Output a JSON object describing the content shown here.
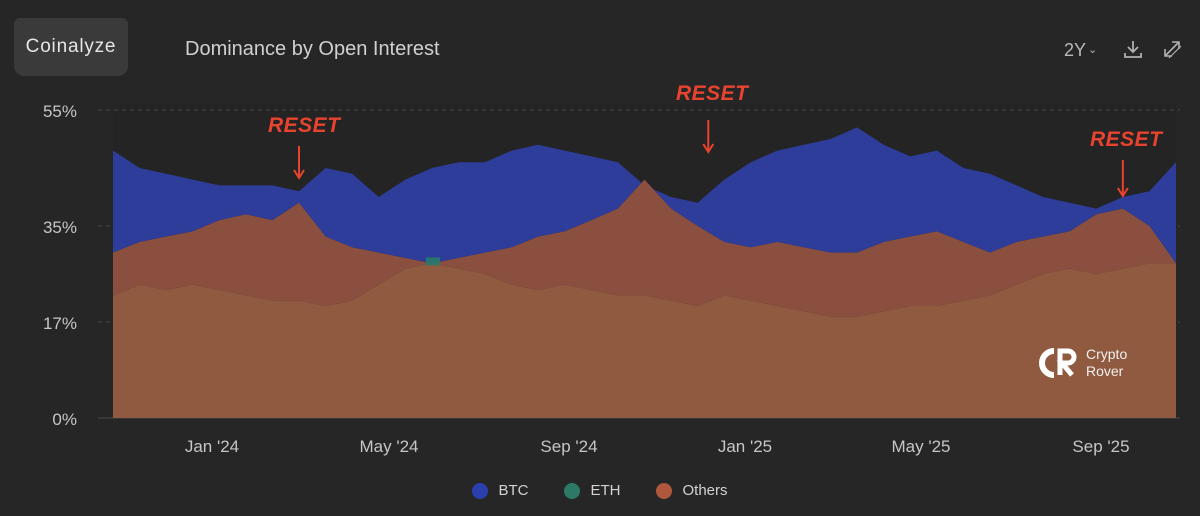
{
  "header": {
    "brand": "Coinalyze",
    "title": "Dominance by Open Interest",
    "range": "2Y",
    "range_chevron": "⌄"
  },
  "watermark": {
    "line1": "Crypto",
    "line2": "Rover"
  },
  "annotations": {
    "reset_1": "RESET",
    "reset_2": "RESET",
    "reset_3": "RESET"
  },
  "colors": {
    "btc": "#2e3d9a",
    "eth": "#2a7a6a",
    "others": "#8a4f3e",
    "others_base": "#8f5a40",
    "annotation": "#e8432f"
  },
  "chart_data": {
    "type": "area",
    "stacking": "stacked",
    "title": "Dominance by Open Interest",
    "y_ticks": [
      "55%",
      "35%",
      "17%",
      "0%"
    ],
    "x_ticks": [
      "Jan '24",
      "May '24",
      "Sep '24",
      "Jan '25",
      "May '25",
      "Sep '25"
    ],
    "legend": [
      "BTC",
      "ETH",
      "Others"
    ],
    "annotation_points": [
      {
        "label": "RESET",
        "t": 0.175
      },
      {
        "label": "RESET",
        "t": 0.56
      },
      {
        "label": "RESET",
        "t": 0.95
      }
    ],
    "series": [
      {
        "name": "Others",
        "values": [
          22,
          24,
          23,
          24,
          23,
          22,
          21,
          21,
          20,
          21,
          24,
          27,
          28,
          27,
          26,
          24,
          23,
          24,
          23,
          22,
          22,
          21,
          20,
          22,
          21,
          20,
          19,
          18,
          18,
          19,
          20,
          20,
          21,
          22,
          24,
          26,
          27,
          26,
          27,
          28,
          28
        ]
      },
      {
        "name": "ETH",
        "values": [
          30,
          32,
          33,
          34,
          36,
          37,
          36,
          39,
          33,
          31,
          30,
          29,
          28,
          29,
          30,
          31,
          33,
          34,
          36,
          38,
          43,
          38,
          35,
          32,
          31,
          32,
          31,
          30,
          30,
          32,
          33,
          34,
          32,
          30,
          32,
          33,
          34,
          37,
          38,
          35,
          28
        ]
      },
      {
        "name": "BTC",
        "values": [
          48,
          45,
          44,
          43,
          42,
          42,
          42,
          41,
          45,
          44,
          40,
          43,
          45,
          46,
          46,
          48,
          49,
          48,
          47,
          46,
          42,
          40,
          39,
          43,
          46,
          48,
          49,
          50,
          52,
          49,
          47,
          48,
          45,
          44,
          42,
          40,
          39,
          38,
          40,
          41,
          46
        ]
      }
    ]
  }
}
